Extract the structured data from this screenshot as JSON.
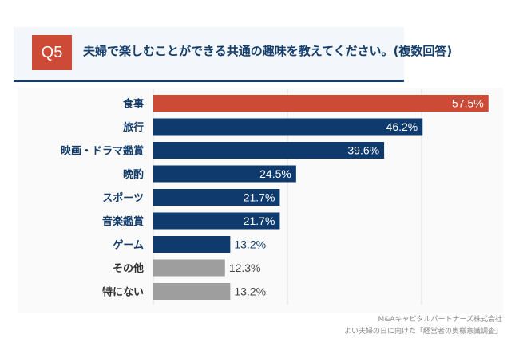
{
  "header": {
    "question_badge": "Q5",
    "title": "夫婦で楽しむことができる共通の趣味を教えてください。(複数回答)"
  },
  "colors": {
    "highlight": "#cc4a36",
    "primary": "#0e3a6e",
    "muted": "#9e9e9e",
    "title_text": "#143d6b"
  },
  "chart_data": {
    "type": "bar",
    "orientation": "horizontal",
    "title": "夫婦で楽しむことができる共通の趣味を教えてください。(複数回答)",
    "xlabel": "",
    "ylabel": "",
    "unit": "%",
    "grid": true,
    "categories": [
      "食事",
      "旅行",
      "映画・ドラマ鑑賞",
      "晩酌",
      "スポーツ",
      "音楽鑑賞",
      "ゲーム",
      "その他",
      "特にない"
    ],
    "values": [
      57.5,
      46.2,
      39.6,
      24.5,
      21.7,
      21.7,
      13.2,
      12.3,
      13.2
    ],
    "value_labels": [
      "57.5%",
      "46.2%",
      "39.6%",
      "24.5%",
      "21.7%",
      "21.7%",
      "13.2%",
      "12.3%",
      "13.2%"
    ],
    "bar_colors": [
      "highlight",
      "primary",
      "primary",
      "primary",
      "primary",
      "primary",
      "primary",
      "muted",
      "muted"
    ],
    "xlim": [
      0,
      60
    ]
  },
  "source": {
    "line1": "M&Aキャピタルパートナーズ株式会社",
    "line2": "よい夫婦の日に向けた「経営者の奥様意識調査」"
  }
}
